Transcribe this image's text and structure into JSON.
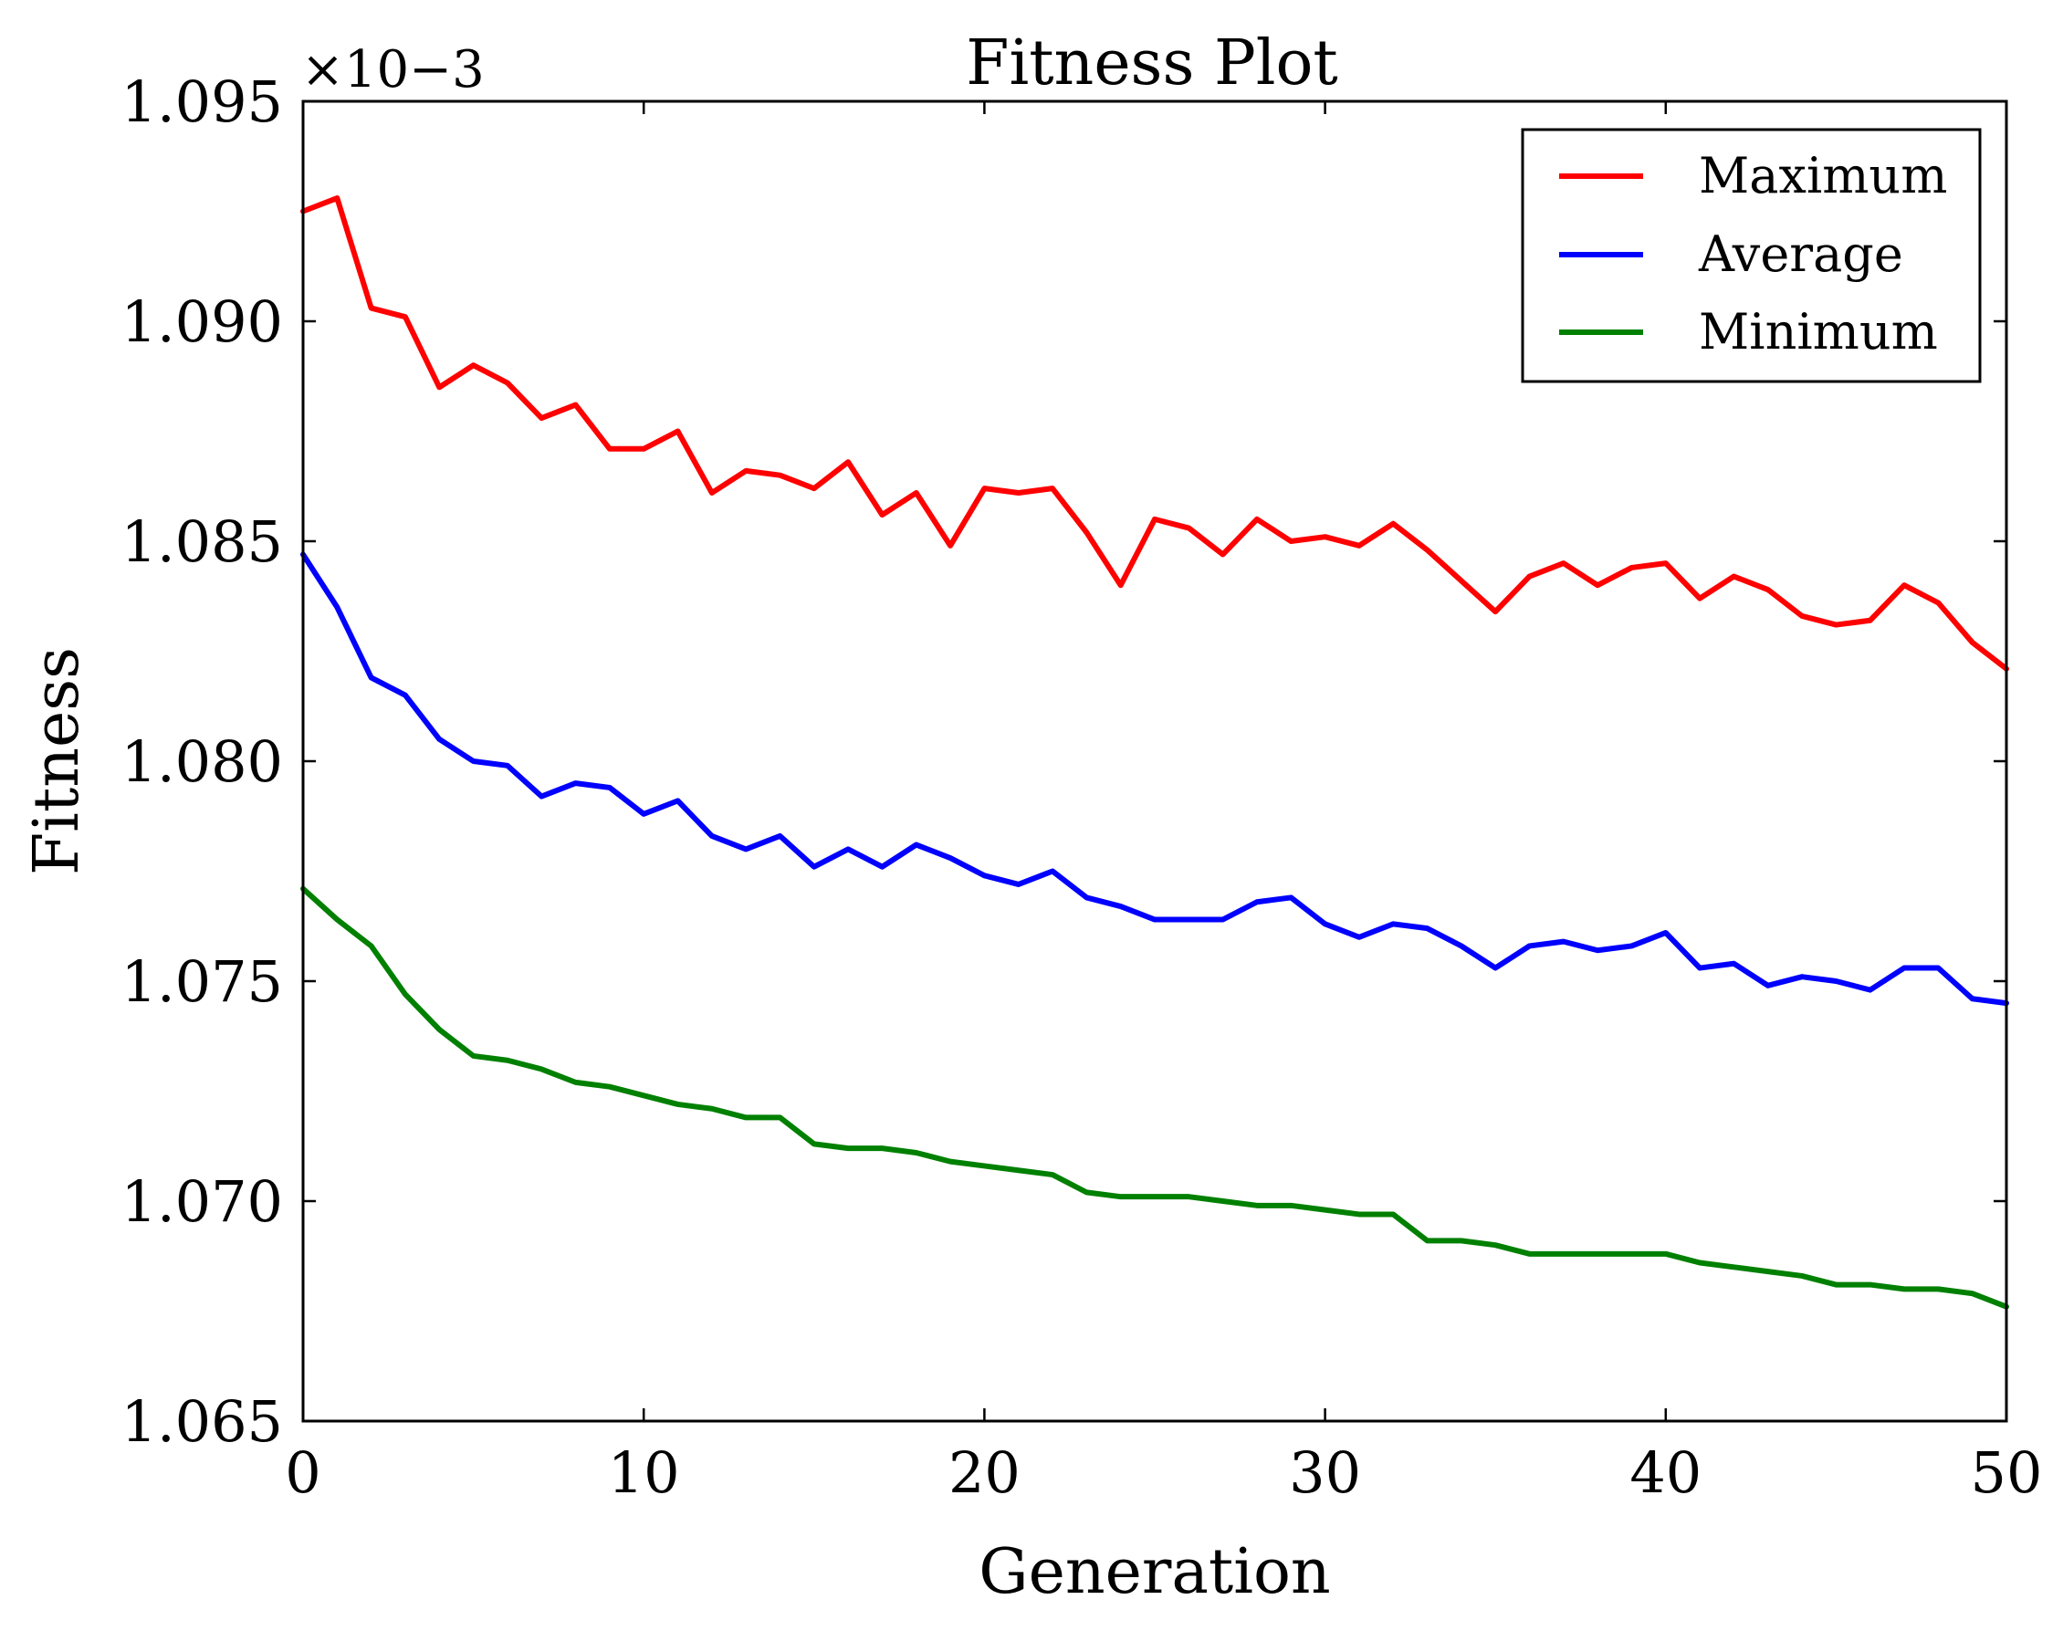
{
  "chart_data": {
    "type": "line",
    "title": "Fitness Plot",
    "xlabel": "Generation",
    "ylabel": "Fitness",
    "y_offset_label": "×10−3",
    "xlim": [
      0,
      50
    ],
    "ylim": [
      1.065,
      1.095
    ],
    "xticks": [
      0,
      10,
      20,
      30,
      40,
      50
    ],
    "xtick_labels": [
      "0",
      "10",
      "20",
      "30",
      "40",
      "50"
    ],
    "yticks": [
      1.065,
      1.07,
      1.075,
      1.08,
      1.085,
      1.09,
      1.095
    ],
    "ytick_labels": [
      "1.065",
      "1.070",
      "1.075",
      "1.080",
      "1.085",
      "1.090",
      "1.095"
    ],
    "grid": false,
    "legend": {
      "position": "top-right"
    },
    "x": [
      0,
      1,
      2,
      3,
      4,
      5,
      6,
      7,
      8,
      9,
      10,
      11,
      12,
      13,
      14,
      15,
      16,
      17,
      18,
      19,
      20,
      21,
      22,
      23,
      24,
      25,
      26,
      27,
      28,
      29,
      30,
      31,
      32,
      33,
      34,
      35,
      36,
      37,
      38,
      39,
      40,
      41,
      42,
      43,
      44,
      45,
      46,
      47,
      48,
      49,
      50
    ],
    "series": [
      {
        "name": "Maximum",
        "color": "#ff0000",
        "values": [
          1.0925,
          1.0928,
          1.0903,
          1.0901,
          1.0885,
          1.089,
          1.0886,
          1.0878,
          1.0881,
          1.0871,
          1.0871,
          1.0875,
          1.0861,
          1.0866,
          1.0865,
          1.0862,
          1.0868,
          1.0856,
          1.0861,
          1.0849,
          1.0862,
          1.0861,
          1.0862,
          1.0852,
          1.084,
          1.0855,
          1.0853,
          1.0847,
          1.0855,
          1.085,
          1.0851,
          1.0849,
          1.0854,
          1.0848,
          1.0841,
          1.0834,
          1.0842,
          1.0845,
          1.084,
          1.0844,
          1.0845,
          1.0837,
          1.0842,
          1.0839,
          1.0833,
          1.0831,
          1.0832,
          1.084,
          1.0836,
          1.0827,
          1.0821
        ]
      },
      {
        "name": "Average",
        "color": "#0000ff",
        "values": [
          1.0847,
          1.0835,
          1.0819,
          1.0815,
          1.0805,
          1.08,
          1.0799,
          1.0792,
          1.0795,
          1.0794,
          1.0788,
          1.0791,
          1.0783,
          1.078,
          1.0783,
          1.0776,
          1.078,
          1.0776,
          1.0781,
          1.0778,
          1.0774,
          1.0772,
          1.0775,
          1.0769,
          1.0767,
          1.0764,
          1.0764,
          1.0764,
          1.0768,
          1.0769,
          1.0763,
          1.076,
          1.0763,
          1.0762,
          1.0758,
          1.0753,
          1.0758,
          1.0759,
          1.0757,
          1.0758,
          1.0761,
          1.0753,
          1.0754,
          1.0749,
          1.0751,
          1.075,
          1.0748,
          1.0753,
          1.0753,
          1.0746,
          1.0745
        ]
      },
      {
        "name": "Minimum",
        "color": "#008000",
        "values": [
          1.0771,
          1.0764,
          1.0758,
          1.0747,
          1.0739,
          1.0733,
          1.0732,
          1.073,
          1.0727,
          1.0726,
          1.0724,
          1.0722,
          1.0721,
          1.0719,
          1.0719,
          1.0713,
          1.0712,
          1.0712,
          1.0711,
          1.0709,
          1.0708,
          1.0707,
          1.0706,
          1.0702,
          1.0701,
          1.0701,
          1.0701,
          1.07,
          1.0699,
          1.0699,
          1.0698,
          1.0697,
          1.0697,
          1.0691,
          1.0691,
          1.069,
          1.0688,
          1.0688,
          1.0688,
          1.0688,
          1.0688,
          1.0686,
          1.0685,
          1.0684,
          1.0683,
          1.0681,
          1.0681,
          1.068,
          1.068,
          1.0679,
          1.0676
        ]
      }
    ]
  }
}
